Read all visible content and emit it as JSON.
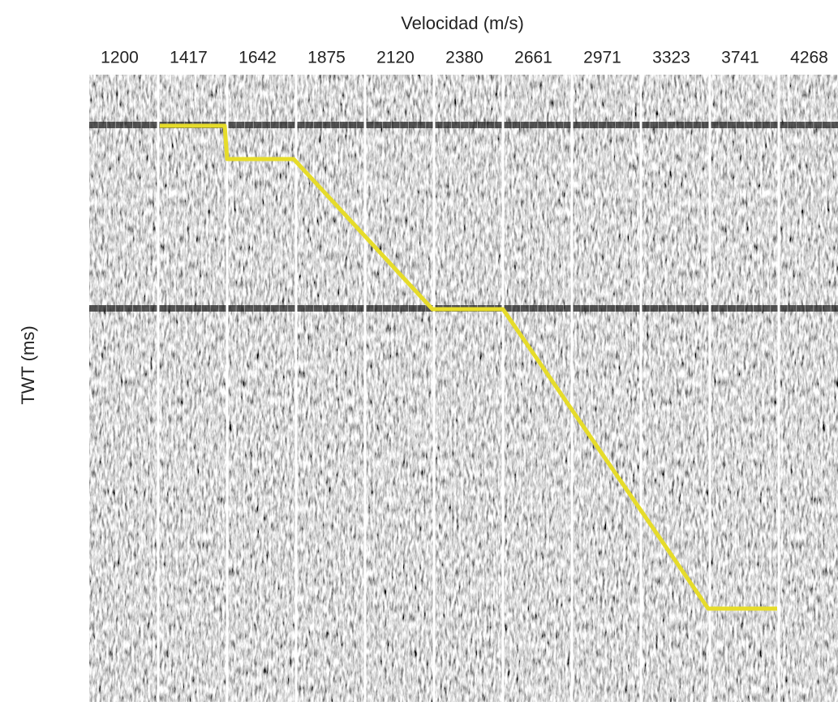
{
  "chart_data": {
    "type": "velocity-panels",
    "title": "Velocidad (m/s)",
    "y_label": "TWT (ms)",
    "categories": [
      1200,
      1417,
      1642,
      1875,
      2120,
      2380,
      2661,
      2971,
      3323,
      3741,
      4268
    ]
  }
}
